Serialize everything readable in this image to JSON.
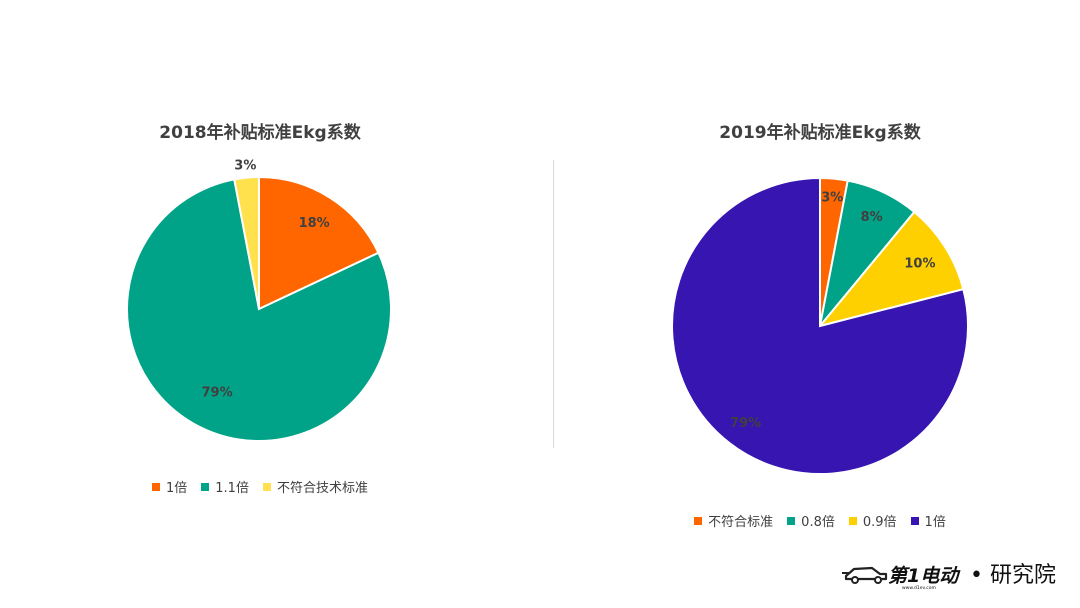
{
  "chart_data": [
    {
      "type": "pie",
      "title": "2018年补贴标准Ekg系数",
      "categories": [
        "1倍",
        "1.1倍",
        "不符合技术标准"
      ],
      "values": [
        18,
        79,
        3
      ],
      "data_labels": [
        "18%",
        "79%",
        "3%"
      ],
      "colors": [
        "#FF6600",
        "#00A387",
        "#FFE14D"
      ],
      "legend_position": "bottom"
    },
    {
      "type": "pie",
      "title": "2019年补贴标准Ekg系数",
      "categories": [
        "不符合标准",
        "0.8倍",
        "0.9倍",
        "1倍"
      ],
      "values": [
        3,
        8,
        10,
        79
      ],
      "data_labels": [
        "3%",
        "8%",
        "10%",
        "79%"
      ],
      "colors": [
        "#FF6600",
        "#00A387",
        "#FFD000",
        "#3615B0"
      ],
      "legend_position": "bottom"
    }
  ],
  "logo": {
    "brand": "第1电动",
    "site": "www.d1ev.com",
    "suffix": "• 研究院"
  }
}
